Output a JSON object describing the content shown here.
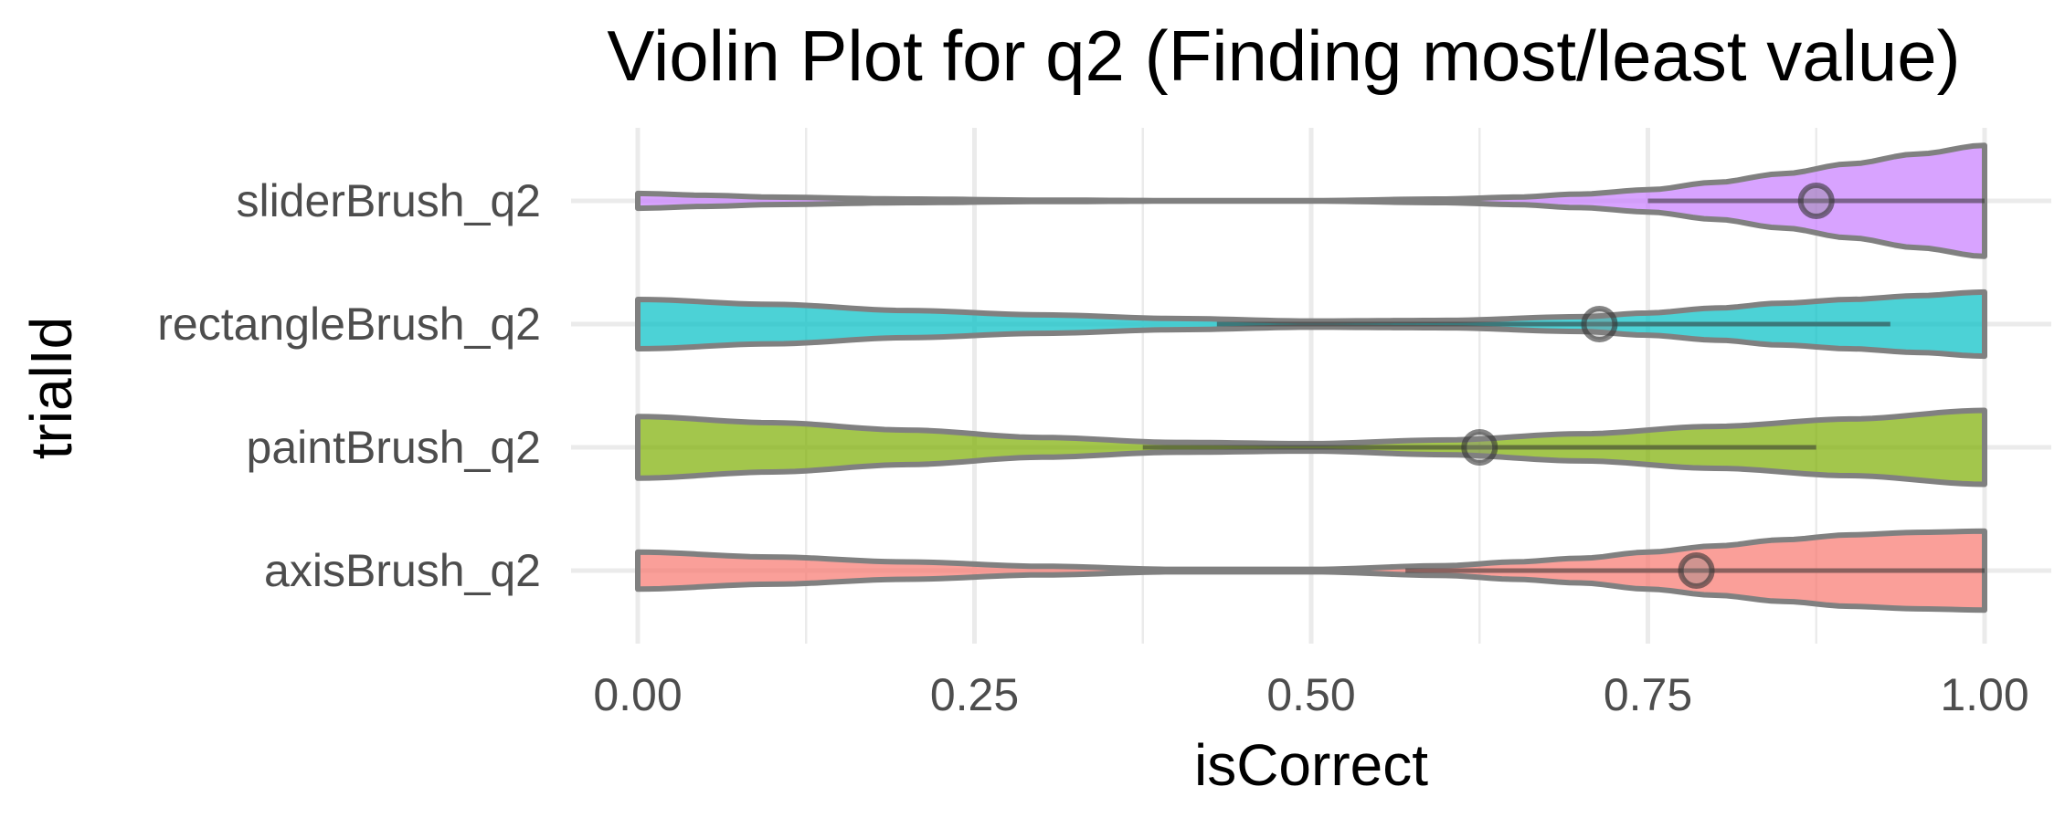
{
  "chart_data": {
    "type": "violin",
    "title": "Violin Plot for q2 (Finding most/least value)",
    "xlabel": "isCorrect",
    "ylabel": "trialId",
    "xlim": [
      0,
      1
    ],
    "x_ticks": [
      "0.00",
      "0.25",
      "0.50",
      "0.75",
      "1.00"
    ],
    "x_tick_values": [
      0,
      0.25,
      0.5,
      0.75,
      1.0
    ],
    "grid": true,
    "orientation": "horizontal",
    "categories": [
      "sliderBrush_q2",
      "rectangleBrush_q2",
      "paintBrush_q2",
      "axisBrush_q2"
    ],
    "series": [
      {
        "category": "sliderBrush_q2",
        "color": "#C77CFF",
        "mean": 0.875,
        "range": [
          0.75,
          1.0
        ],
        "density_x": [
          0,
          0.05,
          0.1,
          0.2,
          0.3,
          0.4,
          0.5,
          0.6,
          0.65,
          0.7,
          0.75,
          0.8,
          0.85,
          0.9,
          0.95,
          1.0
        ],
        "density_halfwidth": [
          0.06,
          0.045,
          0.03,
          0.015,
          0.006,
          0.002,
          0.002,
          0.015,
          0.03,
          0.055,
          0.09,
          0.15,
          0.22,
          0.3,
          0.38,
          0.45
        ]
      },
      {
        "category": "rectangleBrush_q2",
        "color": "#00BFC4",
        "mean": 0.714,
        "range": [
          0.43,
          0.93
        ],
        "density_x": [
          0,
          0.1,
          0.2,
          0.3,
          0.4,
          0.5,
          0.6,
          0.7,
          0.75,
          0.8,
          0.85,
          0.9,
          0.95,
          1.0
        ],
        "density_halfwidth": [
          0.2,
          0.16,
          0.11,
          0.075,
          0.045,
          0.025,
          0.03,
          0.06,
          0.09,
          0.13,
          0.17,
          0.2,
          0.23,
          0.26
        ]
      },
      {
        "category": "paintBrush_q2",
        "color": "#7CAE00",
        "mean": 0.625,
        "range": [
          0.375,
          0.875
        ],
        "density_x": [
          0,
          0.1,
          0.2,
          0.3,
          0.4,
          0.5,
          0.6,
          0.7,
          0.8,
          0.9,
          1.0
        ],
        "density_halfwidth": [
          0.25,
          0.2,
          0.14,
          0.08,
          0.04,
          0.03,
          0.06,
          0.11,
          0.17,
          0.23,
          0.3
        ]
      },
      {
        "category": "axisBrush_q2",
        "color": "#F8766D",
        "mean": 0.786,
        "range": [
          0.57,
          1.0
        ],
        "density_x": [
          0,
          0.1,
          0.2,
          0.3,
          0.4,
          0.5,
          0.6,
          0.65,
          0.7,
          0.75,
          0.8,
          0.85,
          0.9,
          0.95,
          1.0
        ],
        "density_halfwidth": [
          0.15,
          0.11,
          0.07,
          0.035,
          0.01,
          0.01,
          0.04,
          0.07,
          0.1,
          0.15,
          0.2,
          0.25,
          0.29,
          0.31,
          0.32
        ]
      }
    ]
  }
}
